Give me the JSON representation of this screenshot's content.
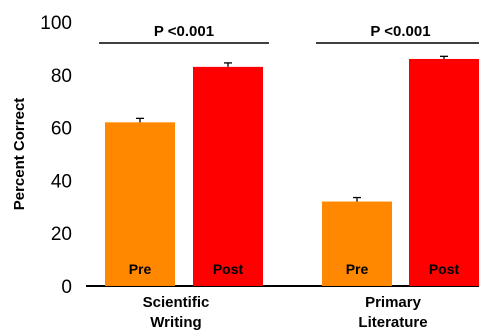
{
  "chart_data": {
    "type": "bar",
    "ylabel": "Percent Correct",
    "ylim": [
      0,
      100
    ],
    "yticks": [
      0,
      20,
      40,
      60,
      80,
      100
    ],
    "grid": false,
    "groups": [
      {
        "label_lines": [
          "Scientific",
          "Writing"
        ],
        "bars": [
          {
            "label": "Pre",
            "value": 62,
            "error": 1.5,
            "color": "#ff8800"
          },
          {
            "label": "Post",
            "value": 83,
            "error": 1.5,
            "color": "#ff0000"
          }
        ],
        "significance": "P <0.001"
      },
      {
        "label_lines": [
          "Primary",
          "Literature"
        ],
        "bars": [
          {
            "label": "Pre",
            "value": 32,
            "error": 1.5,
            "color": "#ff8800"
          },
          {
            "label": "Post",
            "value": 86,
            "error": 1.0,
            "color": "#ff0000"
          }
        ],
        "significance": "P <0.001"
      }
    ]
  }
}
